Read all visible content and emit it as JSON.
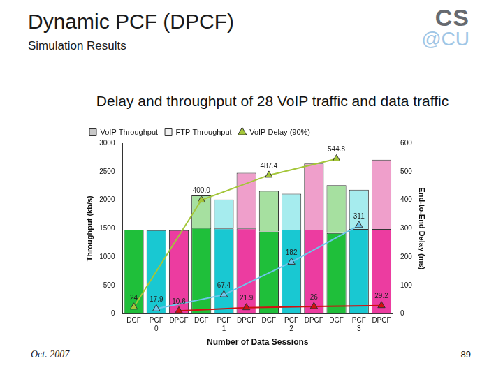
{
  "header": {
    "title": "Dynamic PCF (DPCF)",
    "subtitle": "Simulation Results",
    "logo": [
      "CS",
      "@CU"
    ]
  },
  "footer": {
    "date": "Oct. 2007",
    "page": "89"
  },
  "chart_data": {
    "type": "bar",
    "title": "Delay and throughput of 28 VoIP traffic and data traffic",
    "categories": [
      "DCF",
      "PCF",
      "DPCF",
      "DCF",
      "PCF",
      "DPCF",
      "DCF",
      "PCF",
      "DPCF",
      "DCF",
      "PCF",
      "DPCF"
    ],
    "group_labels": [
      "0",
      "1",
      "2",
      "3"
    ],
    "x_label": "Number of Data Sessions",
    "y_label": "Throughput (kb/s)",
    "y2_label": "End-to-End Delay (ms)",
    "ylim": [
      0,
      3000
    ],
    "yticks": [
      0,
      500,
      1000,
      1500,
      2000,
      2500,
      3000
    ],
    "y2lim": [
      0,
      600
    ],
    "y2ticks": [
      0,
      100,
      200,
      300,
      400,
      500,
      600
    ],
    "stacked": true,
    "grid": false,
    "legend": "upper left",
    "series": [
      {
        "name": "VoIP Throughput",
        "type": "bar",
        "color": "#c8c8c8",
        "colors": [
          "#1fbf3a",
          "#19c8d2",
          "#ec3ca0",
          "#1fbf3a",
          "#19c8d2",
          "#ec3ca0",
          "#1fbf3a",
          "#19c8d2",
          "#ec3ca0",
          "#1fbf3a",
          "#19c8d2",
          "#ec3ca0"
        ],
        "values": [
          1480,
          1470,
          1470,
          1510,
          1500,
          1500,
          1450,
          1480,
          1480,
          1420,
          1490,
          1490
        ]
      },
      {
        "name": "FTP Throughput",
        "type": "bar",
        "color": "#f2f2f2",
        "colors": [
          "#a6e0a0",
          "#a6ecee",
          "#ef9fcb",
          "#a6e0a0",
          "#a6ecee",
          "#ef9fcb",
          "#a6e0a0",
          "#a6ecee",
          "#ef9fcb",
          "#a6e0a0",
          "#a6ecee",
          "#ef9fcb"
        ],
        "values": [
          0,
          0,
          0,
          570,
          510,
          980,
          710,
          630,
          1160,
          840,
          690,
          1220
        ]
      },
      {
        "name": "VoIP Delay (90%)",
        "type": "line",
        "axis": "y2",
        "color": "#a4c639",
        "marker": "triangle",
        "data_labels": true,
        "values": [
          24,
          null,
          null,
          400,
          null,
          null,
          487.4,
          null,
          null,
          544.8,
          null,
          null
        ],
        "value_labels": [
          "24",
          null,
          null,
          "400.0",
          null,
          null,
          "487.4",
          null,
          null,
          "544.8",
          null,
          null
        ]
      },
      {
        "type": "line",
        "axis": "y2",
        "color": "#6cc6ea",
        "marker": "triangle",
        "data_labels": true,
        "values": [
          null,
          17.9,
          null,
          null,
          67.4,
          null,
          null,
          182,
          null,
          null,
          311,
          null
        ],
        "value_labels": [
          null,
          "17.9",
          null,
          null,
          "67.4",
          null,
          null,
          "182",
          null,
          null,
          "311",
          null
        ]
      },
      {
        "type": "line",
        "axis": "y2",
        "color": "#d01010",
        "marker": "triangle",
        "data_labels": true,
        "values": [
          null,
          null,
          10.6,
          null,
          null,
          21.9,
          null,
          null,
          26,
          null,
          null,
          29.2
        ],
        "value_labels": [
          null,
          null,
          "10.6",
          null,
          null,
          "21.9",
          null,
          null,
          "26",
          null,
          null,
          "29.2"
        ]
      }
    ]
  }
}
